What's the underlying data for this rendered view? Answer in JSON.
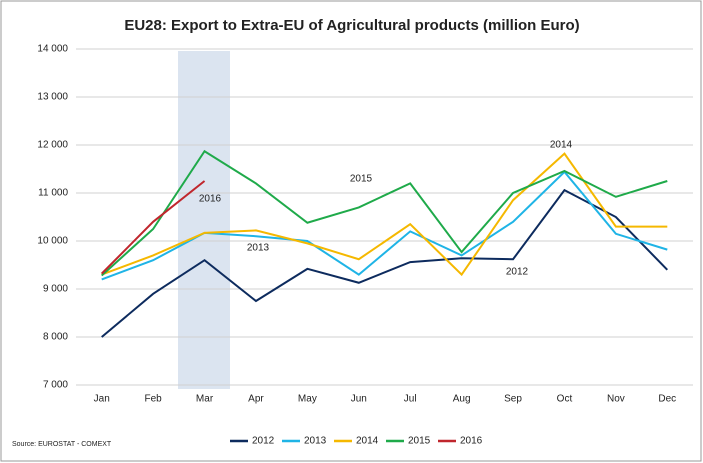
{
  "chart_data": {
    "type": "line",
    "title": "EU28: Export to Extra-EU of Agricultural products (million Euro)",
    "source": "Source: EUROSTAT - COMEXT",
    "categories": [
      "Jan",
      "Feb",
      "Mar",
      "Apr",
      "May",
      "Jun",
      "Jul",
      "Aug",
      "Sep",
      "Oct",
      "Nov",
      "Dec"
    ],
    "series": [
      {
        "name": "2012",
        "color": "#0d2b5e",
        "values": [
          8000,
          8900,
          9600,
          8750,
          9420,
          9130,
          9560,
          9640,
          9620,
          11060,
          10500,
          9400
        ]
      },
      {
        "name": "2013",
        "color": "#1fb4e6",
        "values": [
          9200,
          9600,
          10170,
          10100,
          10000,
          9300,
          10200,
          9700,
          10400,
          11440,
          10150,
          9820
        ]
      },
      {
        "name": "2014",
        "color": "#f5b800",
        "values": [
          9300,
          9700,
          10170,
          10220,
          9950,
          9620,
          10350,
          9300,
          10850,
          11820,
          10300,
          10300
        ]
      },
      {
        "name": "2015",
        "color": "#1faa4a",
        "values": [
          9280,
          10250,
          11870,
          11200,
          10380,
          10700,
          11200,
          9770,
          11000,
          11460,
          10920,
          11250
        ]
      },
      {
        "name": "2016",
        "color": "#c0262d",
        "values": [
          9320,
          10400,
          11250,
          null,
          null,
          null,
          null,
          null,
          null,
          null,
          null,
          null
        ]
      }
    ],
    "annotations": [
      "2016",
      "2013",
      "2015",
      "2014",
      "2012"
    ],
    "ylim": [
      7000,
      14000
    ],
    "yticks": [
      {
        "value": 7000,
        "label": "7 000"
      },
      {
        "value": 8000,
        "label": "8 000"
      },
      {
        "value": 9000,
        "label": "9 000"
      },
      {
        "value": 10000,
        "label": "10 000"
      },
      {
        "value": 11000,
        "label": "11 000"
      },
      {
        "value": 12000,
        "label": "12 000"
      },
      {
        "value": 13000,
        "label": "13 000"
      },
      {
        "value": 14000,
        "label": "14 000"
      }
    ],
    "grid": true,
    "legend": "bottom"
  }
}
